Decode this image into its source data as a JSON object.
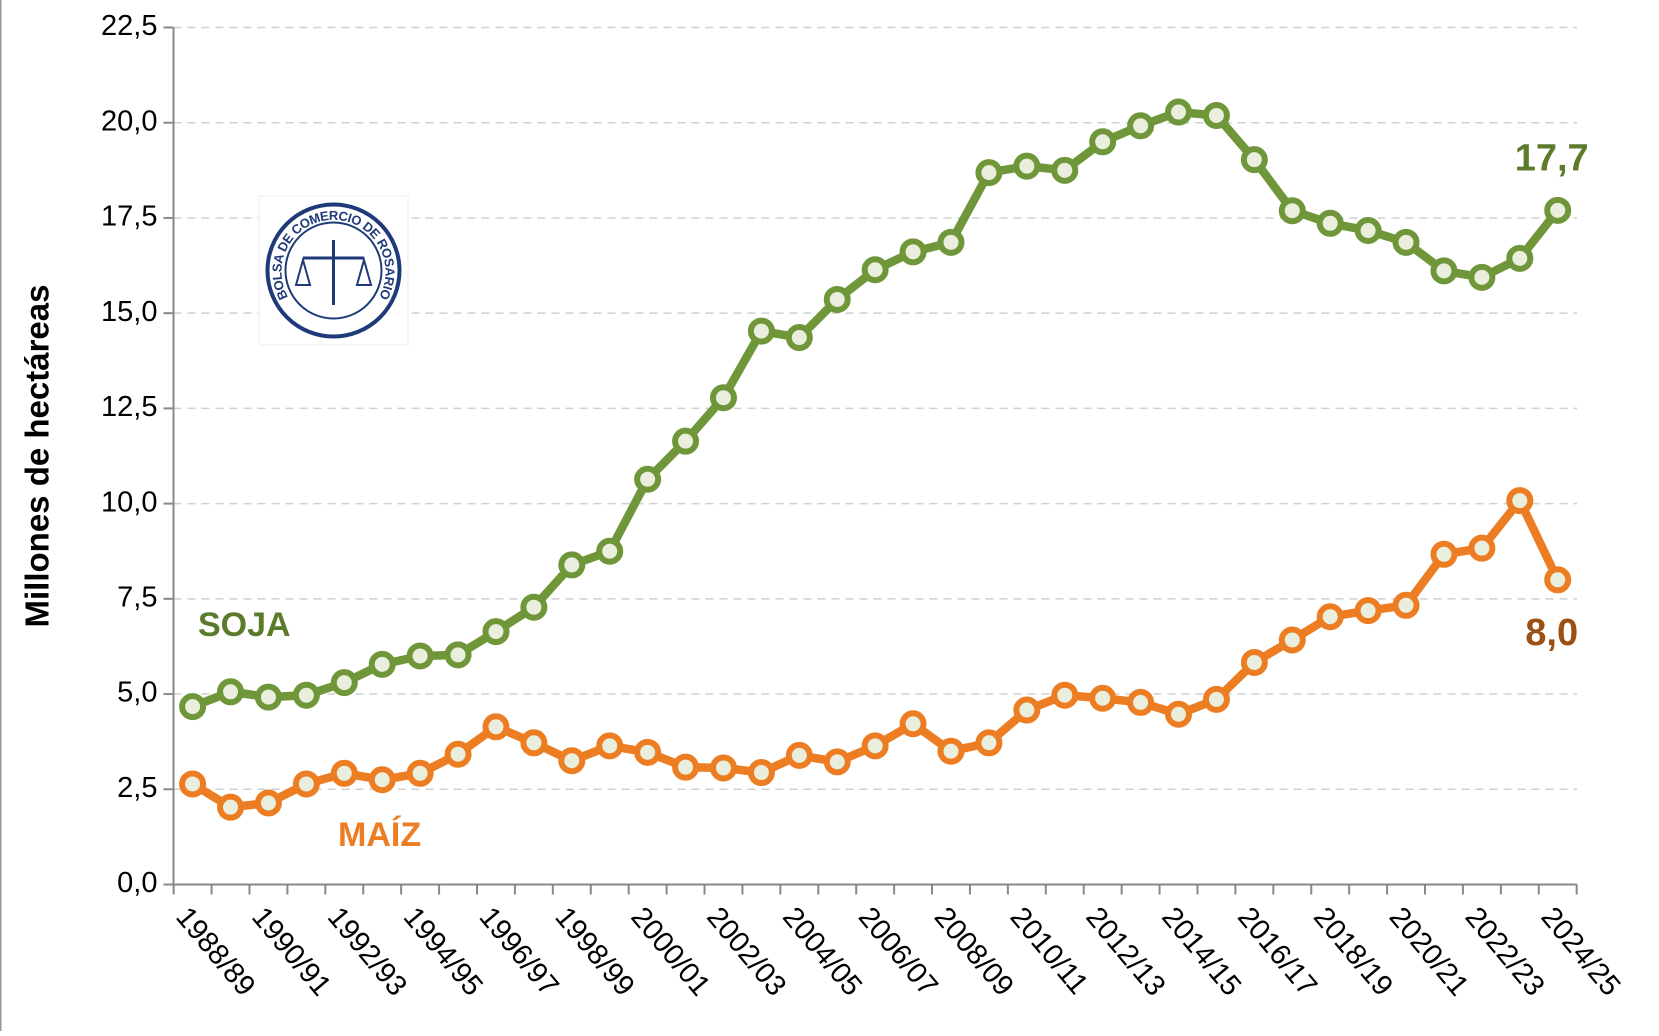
{
  "chart_data": {
    "type": "line",
    "ylabel": "Millones de hectáreas",
    "logo_text": "BOLSA DE COMERCIO DE ROSARIO",
    "categories": [
      "1988/89",
      null,
      "1990/91",
      null,
      "1992/93",
      null,
      "1994/95",
      null,
      "1996/97",
      null,
      "1998/99",
      null,
      "2000/01",
      null,
      "2002/03",
      null,
      "2004/05",
      null,
      "2006/07",
      null,
      "2008/09",
      null,
      "2010/11",
      null,
      "2012/13",
      null,
      "2014/15",
      null,
      "2016/17",
      null,
      "2018/19",
      null,
      "2020/21",
      null,
      "2022/23",
      null,
      "2024/25"
    ],
    "series": [
      {
        "name": "SOJA",
        "color": "#70963a",
        "label_color": "#5b7b2b",
        "values": [
          4.67,
          5.06,
          4.92,
          4.97,
          5.3,
          5.78,
          6.0,
          6.03,
          6.64,
          7.28,
          8.39,
          8.75,
          10.64,
          11.64,
          12.78,
          14.53,
          14.36,
          15.36,
          16.14,
          16.61,
          16.86,
          18.69,
          18.86,
          18.75,
          19.5,
          19.92,
          20.28,
          20.19,
          19.03,
          17.69,
          17.36,
          17.17,
          16.86,
          16.11,
          15.94,
          16.44,
          17.7
        ],
        "value_labels": [
          null,
          null,
          null,
          null,
          null,
          null,
          null,
          null,
          null,
          null,
          null,
          null,
          null,
          null,
          null,
          null,
          null,
          null,
          null,
          null,
          null,
          null,
          null,
          null,
          null,
          null,
          null,
          null,
          null,
          null,
          null,
          null,
          null,
          null,
          null,
          null,
          "17,7"
        ]
      },
      {
        "name": "MAÍZ",
        "color": "#ed7d22",
        "label_color": "#9c5114",
        "values": [
          2.64,
          2.03,
          2.14,
          2.64,
          2.92,
          2.75,
          2.92,
          3.42,
          4.14,
          3.72,
          3.25,
          3.64,
          3.47,
          3.08,
          3.06,
          2.94,
          3.39,
          3.22,
          3.64,
          4.22,
          3.5,
          3.72,
          4.58,
          4.97,
          4.89,
          4.78,
          4.47,
          4.86,
          5.83,
          6.42,
          7.03,
          7.19,
          7.33,
          8.67,
          8.83,
          10.08,
          8.0
        ],
        "value_labels": [
          null,
          null,
          null,
          null,
          null,
          null,
          null,
          null,
          null,
          null,
          null,
          null,
          null,
          null,
          null,
          null,
          null,
          null,
          null,
          null,
          null,
          null,
          null,
          null,
          null,
          null,
          null,
          null,
          null,
          null,
          null,
          null,
          null,
          null,
          null,
          null,
          "8,0"
        ]
      }
    ],
    "ylim": [
      0,
      22.5
    ],
    "yticks": [
      {
        "value": 0,
        "label": "0,0"
      },
      {
        "value": 2.5,
        "label": "2,5"
      },
      {
        "value": 5,
        "label": "5,0"
      },
      {
        "value": 7.5,
        "label": "7,5"
      },
      {
        "value": 10,
        "label": "10,0"
      },
      {
        "value": 12.5,
        "label": "12,5"
      },
      {
        "value": 15,
        "label": "15,0"
      },
      {
        "value": 17.5,
        "label": "17,5"
      },
      {
        "value": 20,
        "label": "20,0"
      },
      {
        "value": 22.5,
        "label": "22,5"
      }
    ],
    "grid": true
  }
}
